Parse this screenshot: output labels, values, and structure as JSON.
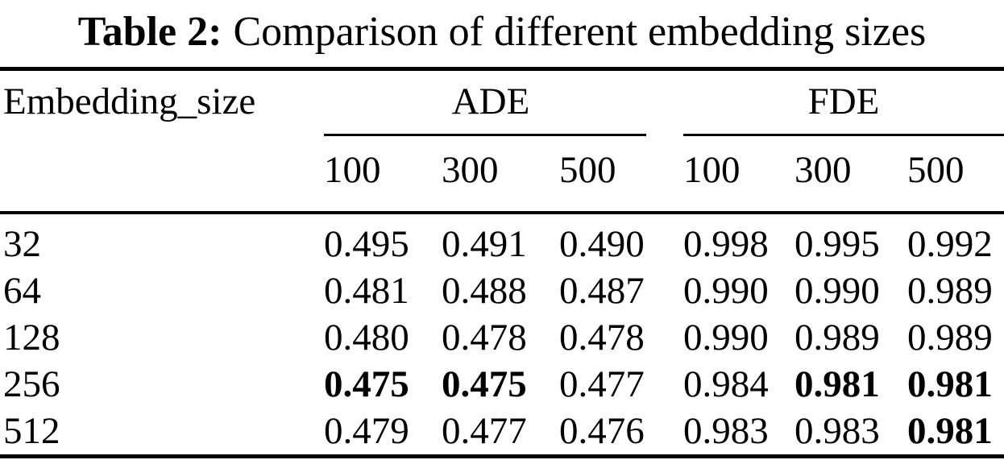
{
  "caption": {
    "label": "Table 2:",
    "text": "Comparison of different embedding sizes"
  },
  "table": {
    "row_header": "Embedding_size",
    "groups": [
      {
        "name": "ADE",
        "subcols": [
          "100",
          "300",
          "500"
        ]
      },
      {
        "name": "FDE",
        "subcols": [
          "100",
          "300",
          "500"
        ]
      }
    ],
    "rows": [
      {
        "size": "32",
        "values": [
          {
            "v": "0.495",
            "bold": false
          },
          {
            "v": "0.491",
            "bold": false
          },
          {
            "v": "0.490",
            "bold": false
          },
          {
            "v": "0.998",
            "bold": false
          },
          {
            "v": "0.995",
            "bold": false
          },
          {
            "v": "0.992",
            "bold": false
          }
        ]
      },
      {
        "size": "64",
        "values": [
          {
            "v": "0.481",
            "bold": false
          },
          {
            "v": "0.488",
            "bold": false
          },
          {
            "v": "0.487",
            "bold": false
          },
          {
            "v": "0.990",
            "bold": false
          },
          {
            "v": "0.990",
            "bold": false
          },
          {
            "v": "0.989",
            "bold": false
          }
        ]
      },
      {
        "size": "128",
        "values": [
          {
            "v": "0.480",
            "bold": false
          },
          {
            "v": "0.478",
            "bold": false
          },
          {
            "v": "0.478",
            "bold": false
          },
          {
            "v": "0.990",
            "bold": false
          },
          {
            "v": "0.989",
            "bold": false
          },
          {
            "v": "0.989",
            "bold": false
          }
        ]
      },
      {
        "size": "256",
        "values": [
          {
            "v": "0.475",
            "bold": true
          },
          {
            "v": "0.475",
            "bold": true
          },
          {
            "v": "0.477",
            "bold": false
          },
          {
            "v": "0.984",
            "bold": false
          },
          {
            "v": "0.981",
            "bold": true
          },
          {
            "v": "0.981",
            "bold": true
          }
        ]
      },
      {
        "size": "512",
        "values": [
          {
            "v": "0.479",
            "bold": false
          },
          {
            "v": "0.477",
            "bold": false
          },
          {
            "v": "0.476",
            "bold": false
          },
          {
            "v": "0.983",
            "bold": false
          },
          {
            "v": "0.983",
            "bold": false
          },
          {
            "v": "0.981",
            "bold": true
          }
        ]
      }
    ]
  },
  "colors": {
    "text": "#000000",
    "background": "#ffffff",
    "rule": "#000000"
  },
  "chart_data": {
    "type": "table",
    "title": "Table 2: Comparison of different embedding sizes",
    "columns": [
      "Embedding_size",
      "ADE 100",
      "ADE 300",
      "ADE 500",
      "FDE 100",
      "FDE 300",
      "FDE 500"
    ],
    "rows": [
      [
        32,
        0.495,
        0.491,
        0.49,
        0.998,
        0.995,
        0.992
      ],
      [
        64,
        0.481,
        0.488,
        0.487,
        0.99,
        0.99,
        0.989
      ],
      [
        128,
        0.48,
        0.478,
        0.478,
        0.99,
        0.989,
        0.989
      ],
      [
        256,
        0.475,
        0.475,
        0.477,
        0.984,
        0.981,
        0.981
      ],
      [
        512,
        0.479,
        0.477,
        0.476,
        0.983,
        0.983,
        0.981
      ]
    ]
  }
}
